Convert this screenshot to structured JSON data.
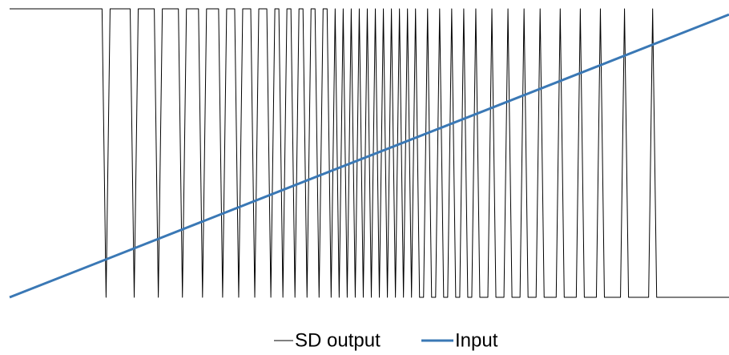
{
  "chart_data": {
    "type": "line",
    "xlim": [
      0,
      179
    ],
    "ylim": [
      -1,
      1
    ],
    "series": [
      {
        "name": "SD output",
        "color": "#000000",
        "values": [
          1,
          1,
          1,
          1,
          1,
          1,
          1,
          1,
          1,
          1,
          1,
          1,
          1,
          1,
          1,
          1,
          1,
          1,
          1,
          1,
          1,
          1,
          1,
          1,
          -1,
          1,
          1,
          1,
          1,
          1,
          1,
          -1,
          1,
          1,
          1,
          1,
          1,
          -1,
          1,
          1,
          1,
          1,
          1,
          -1,
          1,
          1,
          1,
          1,
          -1,
          1,
          1,
          1,
          1,
          -1,
          1,
          1,
          1,
          -1,
          1,
          1,
          1,
          -1,
          1,
          1,
          1,
          -1,
          1,
          1,
          -1,
          1,
          1,
          -1,
          1,
          1,
          -1,
          1,
          1,
          -1,
          1,
          1,
          -1,
          1,
          -1,
          1,
          -1,
          1,
          -1,
          1,
          -1,
          1,
          -1,
          1,
          -1,
          1,
          -1,
          1,
          -1,
          1,
          -1,
          1,
          -1,
          1,
          -1,
          -1,
          1,
          -1,
          -1,
          1,
          -1,
          -1,
          1,
          -1,
          -1,
          1,
          -1,
          -1,
          1,
          -1,
          -1,
          -1,
          1,
          -1,
          -1,
          -1,
          1,
          -1,
          -1,
          -1,
          1,
          -1,
          -1,
          -1,
          1,
          -1,
          -1,
          -1,
          -1,
          1,
          -1,
          -1,
          -1,
          -1,
          1,
          -1,
          -1,
          -1,
          -1,
          1,
          -1,
          -1,
          -1,
          -1,
          -1,
          1,
          -1,
          -1,
          -1,
          -1,
          -1,
          -1,
          1,
          -1,
          -1,
          -1,
          -1,
          -1,
          -1,
          -1,
          -1,
          -1,
          -1,
          -1,
          -1,
          -1,
          -1,
          -1,
          -1,
          -1,
          -1,
          -1
        ]
      },
      {
        "name": "Input",
        "color": "#3a78b5",
        "x": [
          0,
          179
        ],
        "values": [
          -1,
          0.96
        ]
      }
    ]
  }
}
